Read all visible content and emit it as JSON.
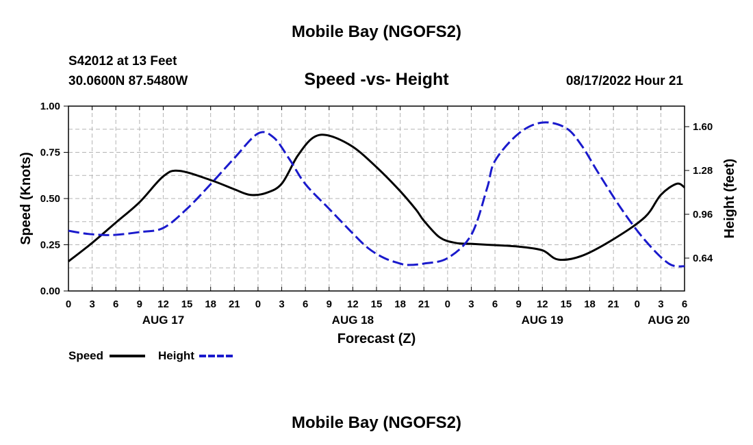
{
  "page": {
    "title": "Mobile Bay (NGOFS2)",
    "station": "S42012 at 13 Feet",
    "coords": "30.0600N  87.5480W",
    "subtitle": "Speed -vs- Height",
    "datetime": "08/17/2022 Hour 21",
    "footer_title": "Mobile Bay (NGOFS2)"
  },
  "legend": {
    "speed_label": "Speed",
    "height_label": "Height"
  },
  "colors": {
    "speed": "#000000",
    "height": "#1a1acc",
    "grid": "#b3b3b3"
  },
  "chart_data": {
    "type": "line",
    "title": "Speed -vs- Height",
    "xlabel": "Forecast (Z)",
    "ylabel": "Speed (Knots)",
    "y2label": "Height (feet)",
    "x_unit": "hours from 00Z Aug 17",
    "xlim": [
      0,
      78
    ],
    "ylim": [
      0,
      1.0
    ],
    "y2lim": [
      0.4,
      1.75
    ],
    "x_ticks": [
      0,
      3,
      6,
      9,
      12,
      15,
      18,
      21,
      24,
      27,
      30,
      33,
      36,
      39,
      42,
      45,
      48,
      51,
      54,
      57,
      60,
      63,
      66,
      69,
      72,
      75,
      78
    ],
    "x_tick_labels": [
      "0",
      "3",
      "6",
      "9",
      "12",
      "15",
      "18",
      "21",
      "0",
      "3",
      "6",
      "9",
      "12",
      "15",
      "18",
      "21",
      "0",
      "3",
      "6",
      "9",
      "12",
      "15",
      "18",
      "21",
      "0",
      "3",
      "6"
    ],
    "day_labels": [
      {
        "x": 12,
        "label": "AUG 17"
      },
      {
        "x": 36,
        "label": "AUG 18"
      },
      {
        "x": 60,
        "label": "AUG 19"
      },
      {
        "x": 76,
        "label": "AUG 20"
      }
    ],
    "y_ticks": [
      0.0,
      0.25,
      0.5,
      0.75,
      1.0
    ],
    "y_tick_labels": [
      "0.00",
      "0.25",
      "0.50",
      "0.75",
      "1.00"
    ],
    "y2_ticks": [
      0.64,
      0.96,
      1.28,
      1.6
    ],
    "y2_tick_labels": [
      "0.64",
      "0.96",
      "1.28",
      "1.60"
    ],
    "grid": true,
    "series": [
      {
        "name": "Speed",
        "axis": "left",
        "x": [
          0,
          3,
          6,
          9,
          12,
          14,
          18,
          21,
          23,
          25,
          27,
          29,
          31,
          33,
          36,
          39,
          42,
          44,
          45,
          47,
          49,
          51,
          53,
          54,
          57,
          60,
          62,
          65,
          69,
          73,
          75,
          77,
          78
        ],
        "values": [
          0.16,
          0.26,
          0.37,
          0.48,
          0.62,
          0.65,
          0.6,
          0.55,
          0.52,
          0.53,
          0.58,
          0.73,
          0.83,
          0.84,
          0.78,
          0.67,
          0.54,
          0.44,
          0.38,
          0.29,
          0.26,
          0.255,
          0.25,
          0.248,
          0.24,
          0.22,
          0.17,
          0.19,
          0.28,
          0.4,
          0.52,
          0.58,
          0.56
        ]
      },
      {
        "name": "Height",
        "axis": "right",
        "x": [
          0,
          2,
          4,
          6,
          9,
          12,
          15,
          18,
          21,
          24,
          26,
          28,
          30,
          33,
          36,
          38,
          40,
          42,
          43,
          45,
          48,
          51,
          53,
          54,
          57,
          60,
          63,
          65,
          67,
          70,
          73,
          76,
          78
        ],
        "values": [
          0.84,
          0.82,
          0.81,
          0.81,
          0.83,
          0.86,
          1.0,
          1.18,
          1.37,
          1.55,
          1.52,
          1.36,
          1.18,
          1.0,
          0.82,
          0.71,
          0.64,
          0.6,
          0.59,
          0.6,
          0.64,
          0.81,
          1.15,
          1.35,
          1.55,
          1.63,
          1.59,
          1.46,
          1.27,
          1.0,
          0.77,
          0.6,
          0.58
        ]
      }
    ]
  }
}
